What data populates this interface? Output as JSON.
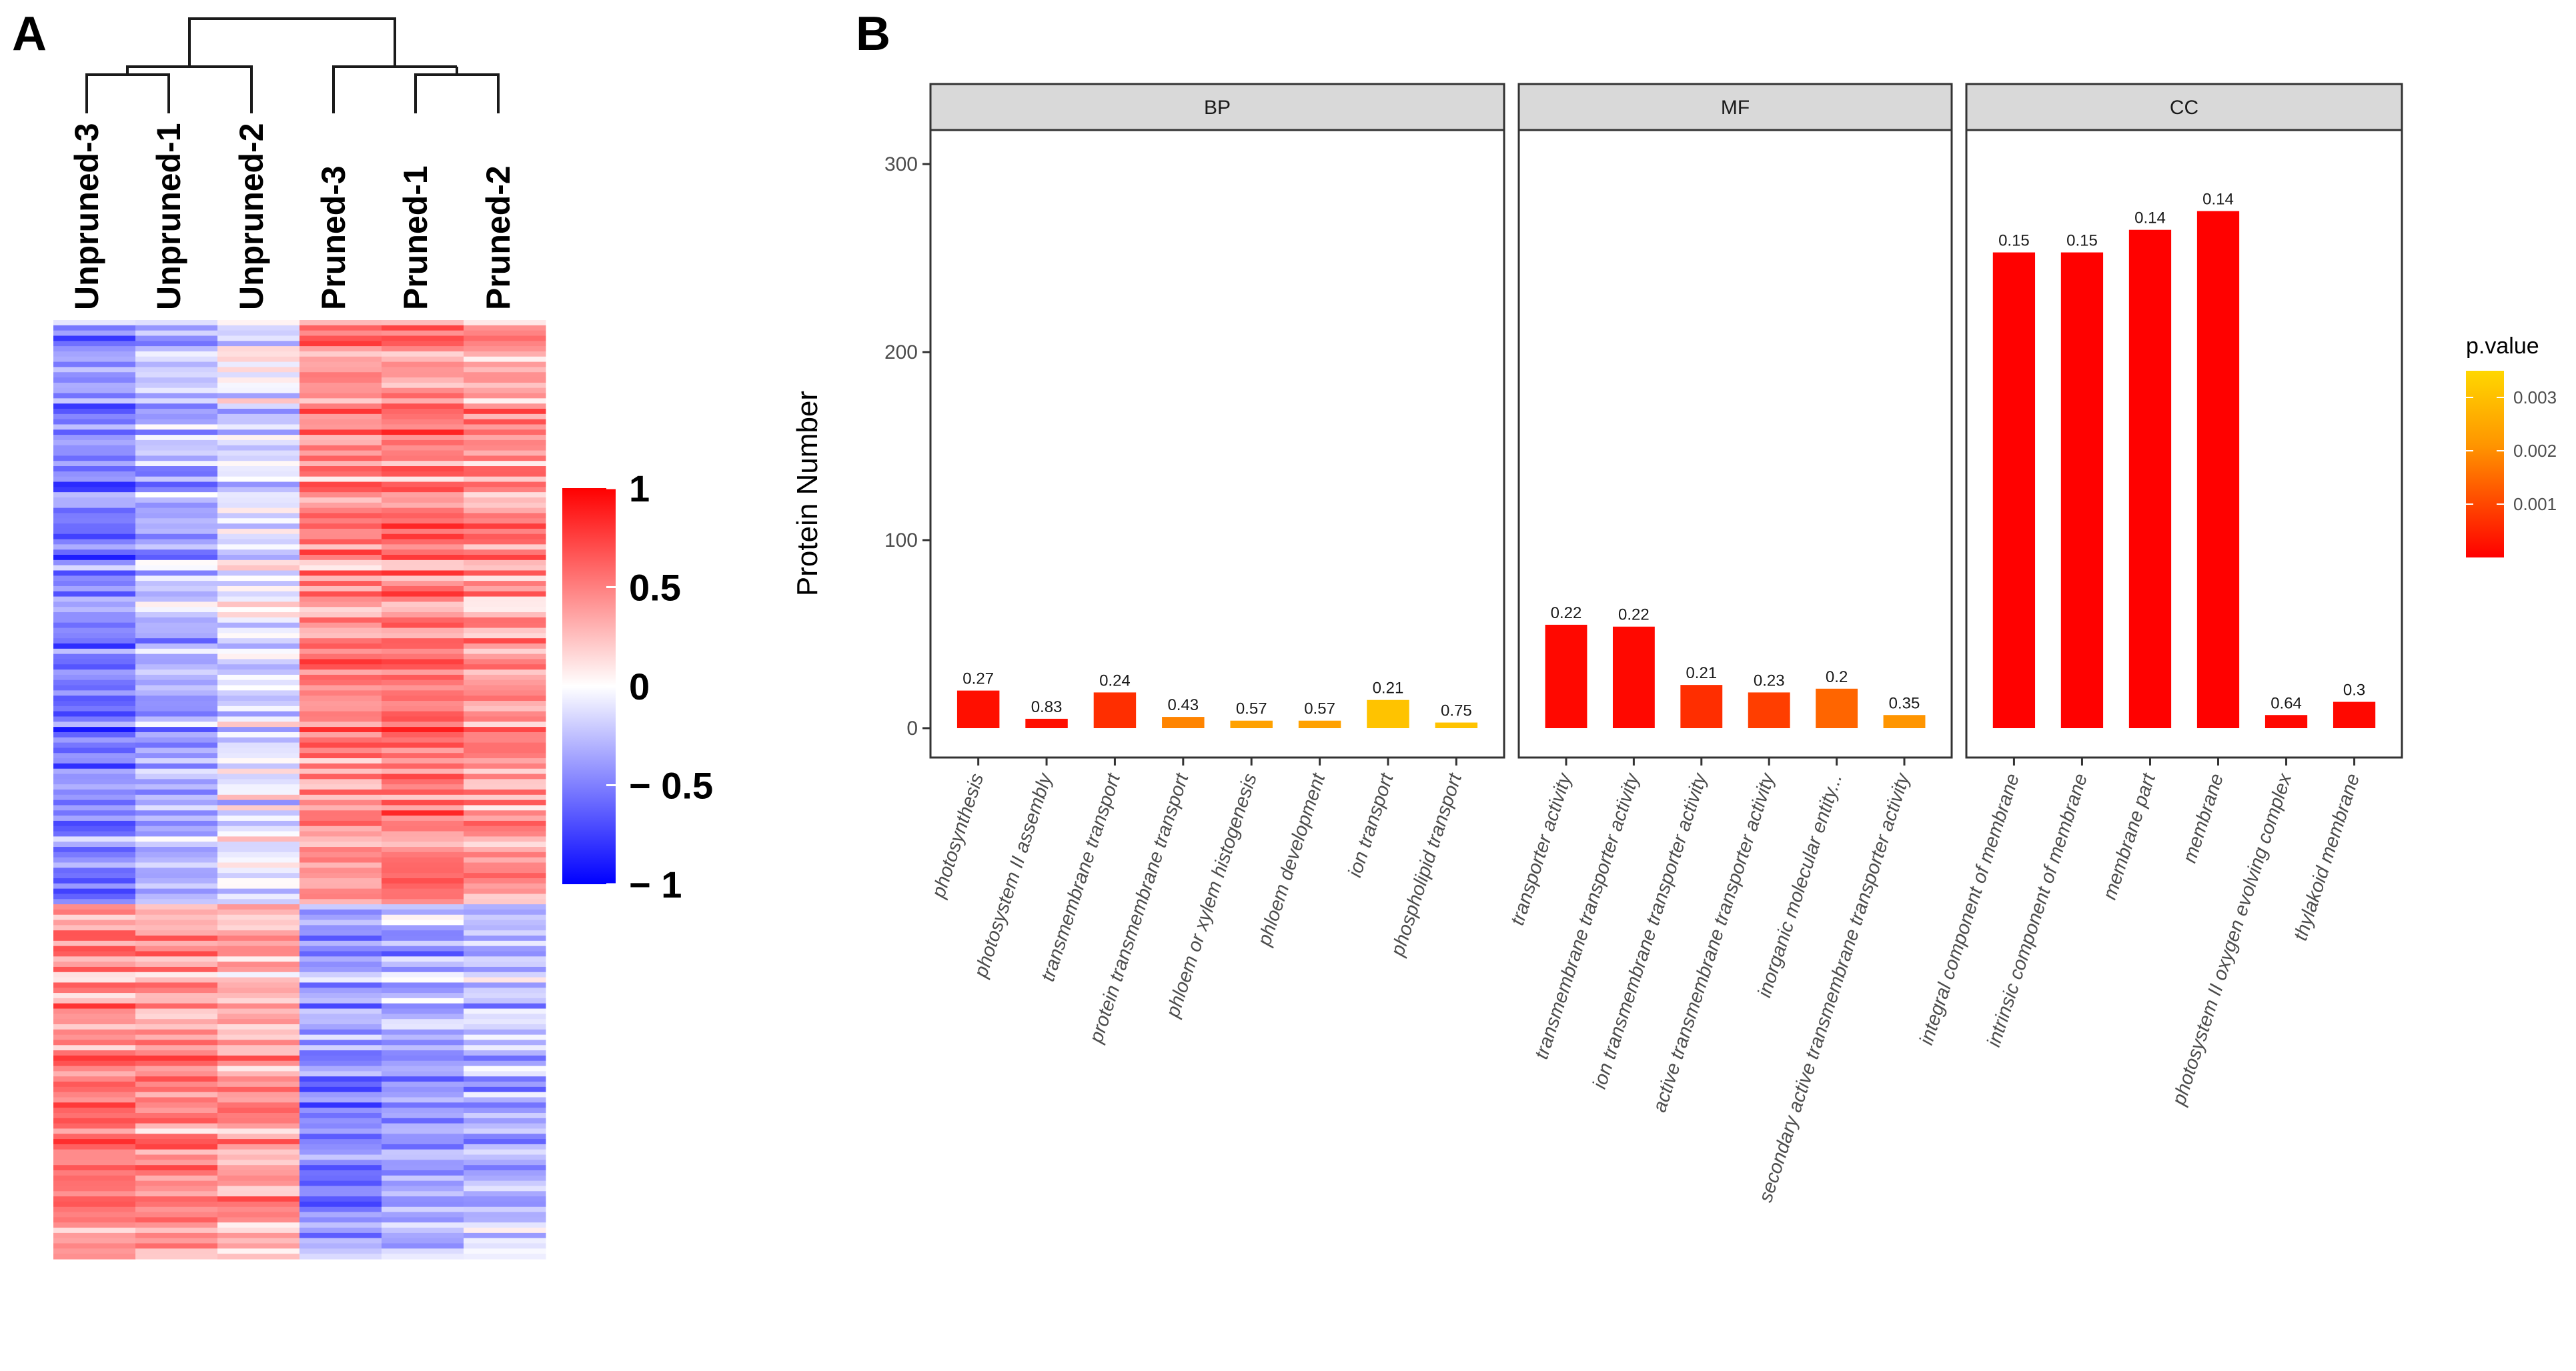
{
  "panels": {
    "a_label": "A",
    "b_label": "B"
  },
  "heatmap": {
    "samples": [
      "Unpruned-3",
      "Unpruned-1",
      "Unpruned-2",
      "Pruned-3",
      "Pruned-1",
      "Pruned-2"
    ],
    "clusters": [
      {
        "name": "upper",
        "row_share": 0.62,
        "values": [
          -0.5,
          -0.3,
          -0.1,
          0.45,
          0.5,
          0.4
        ]
      },
      {
        "name": "lower",
        "row_share": 0.38,
        "values": [
          0.5,
          0.45,
          0.35,
          -0.45,
          -0.35,
          -0.3
        ]
      }
    ],
    "colorbar": {
      "min": -1,
      "max": 1,
      "colors": {
        "low": "#0000ff",
        "mid": "#ffffff",
        "high": "#ff0000"
      },
      "ticks": [
        {
          "value": 1,
          "label": "1"
        },
        {
          "value": 0.5,
          "label": "0.5"
        },
        {
          "value": 0,
          "label": "0"
        },
        {
          "value": -0.5,
          "label": "− 0.5"
        },
        {
          "value": -1,
          "label": "− 1"
        }
      ]
    }
  },
  "chart_data": {
    "type": "bar",
    "ylabel": "Protein Number",
    "ylim": [
      0,
      320
    ],
    "yticks": [
      0,
      100,
      200,
      300
    ],
    "legend": {
      "title": "p.value",
      "ticks": [
        {
          "value": 0.003,
          "label": "0.003"
        },
        {
          "value": 0.002,
          "label": "0.002"
        },
        {
          "value": 0.001,
          "label": "0.001"
        }
      ],
      "range": [
        0,
        0.0035
      ],
      "colors": {
        "low": "#ff0000",
        "high": "#ffd700"
      }
    },
    "facets": [
      {
        "name": "BP",
        "bars": [
          {
            "category": "photosynthesis",
            "value": 20,
            "label": "0.27",
            "pvalue": 0.0002
          },
          {
            "category": "photosystem II assembly",
            "value": 5,
            "label": "0.83",
            "pvalue": 0.0002
          },
          {
            "category": "transmembrane transport",
            "value": 19,
            "label": "0.24",
            "pvalue": 0.0006
          },
          {
            "category": "protein transmembrane transport",
            "value": 6,
            "label": "0.43",
            "pvalue": 0.0018
          },
          {
            "category": "phloem or xylem histogenesis",
            "value": 4,
            "label": "0.57",
            "pvalue": 0.0025
          },
          {
            "category": "phloem development",
            "value": 4,
            "label": "0.57",
            "pvalue": 0.0025
          },
          {
            "category": "ion transport",
            "value": 15,
            "label": "0.21",
            "pvalue": 0.0033
          },
          {
            "category": "phospholipid transport",
            "value": 3,
            "label": "0.75",
            "pvalue": 0.0033
          }
        ]
      },
      {
        "name": "MF",
        "bars": [
          {
            "category": "transporter activity",
            "value": 55,
            "label": "0.22",
            "pvalue": 0.0001
          },
          {
            "category": "transmembrane transporter activity",
            "value": 54,
            "label": "0.22",
            "pvalue": 0.0001
          },
          {
            "category": "ion transmembrane transporter activity",
            "value": 23,
            "label": "0.21",
            "pvalue": 0.0006
          },
          {
            "category": "active transmembrane transporter activity",
            "value": 19,
            "label": "0.23",
            "pvalue": 0.0008
          },
          {
            "category": "inorganic molecular entity...",
            "value": 21,
            "label": "0.2",
            "pvalue": 0.0013
          },
          {
            "category": "secondary active transmembrane transporter activity",
            "value": 7,
            "label": "0.35",
            "pvalue": 0.0022
          }
        ]
      },
      {
        "name": "CC",
        "bars": [
          {
            "category": "integral component of membrane",
            "value": 253,
            "label": "0.15",
            "pvalue": 1e-05
          },
          {
            "category": "intrinsic component of membrane",
            "value": 253,
            "label": "0.15",
            "pvalue": 1e-05
          },
          {
            "category": "membrane part",
            "value": 265,
            "label": "0.14",
            "pvalue": 1e-05
          },
          {
            "category": "membrane",
            "value": 275,
            "label": "0.14",
            "pvalue": 1e-05
          },
          {
            "category": "photosystem II oxygen evolving complex",
            "value": 7,
            "label": "0.64",
            "pvalue": 0.0001
          },
          {
            "category": "thylakoid membrane",
            "value": 14,
            "label": "0.3",
            "pvalue": 0.0001
          }
        ]
      }
    ]
  }
}
